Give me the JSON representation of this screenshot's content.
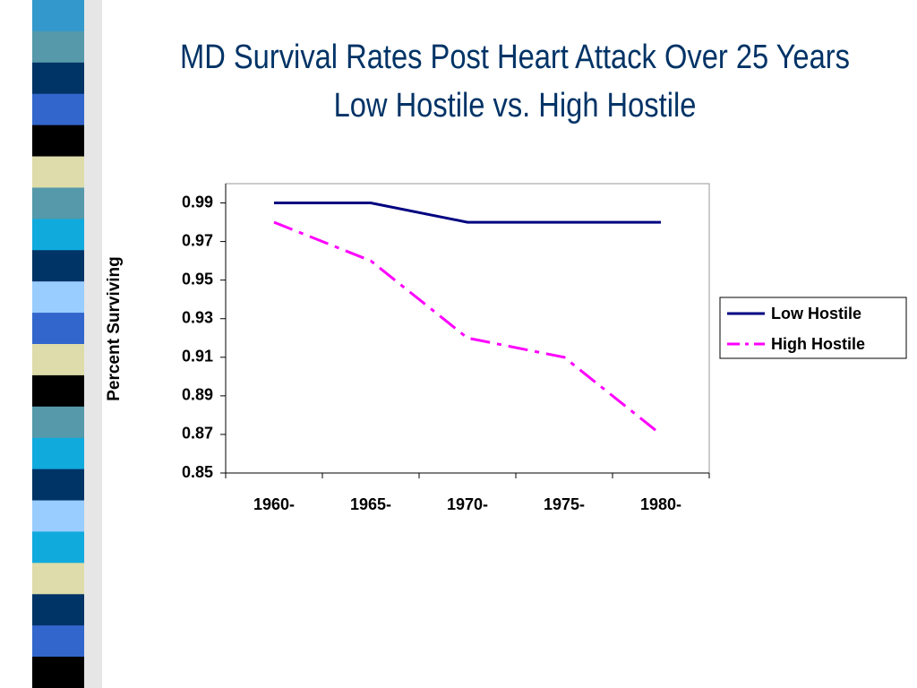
{
  "chart_data": {
    "type": "line",
    "title": "MD Survival Rates Post Heart Attack Over 25 Years",
    "subtitle": "Low Hostile vs. High Hostile",
    "y_label": "Percent Surviving",
    "categories": [
      "1960-",
      "1965-",
      "1970-",
      "1975-",
      "1980-"
    ],
    "series": [
      {
        "name": "Low Hostile",
        "color": "#000080",
        "dash": false,
        "values": [
          0.99,
          0.99,
          0.98,
          0.98,
          0.98
        ]
      },
      {
        "name": "High Hostile",
        "color": "#ff00ff",
        "dash": true,
        "values": [
          0.98,
          0.96,
          0.92,
          0.91,
          0.87
        ]
      }
    ],
    "ylim": [
      0.85,
      1.0
    ],
    "yticks": [
      0.85,
      0.87,
      0.89,
      0.91,
      0.93,
      0.95,
      0.97,
      0.99
    ],
    "grid": false,
    "legend": "right"
  }
}
